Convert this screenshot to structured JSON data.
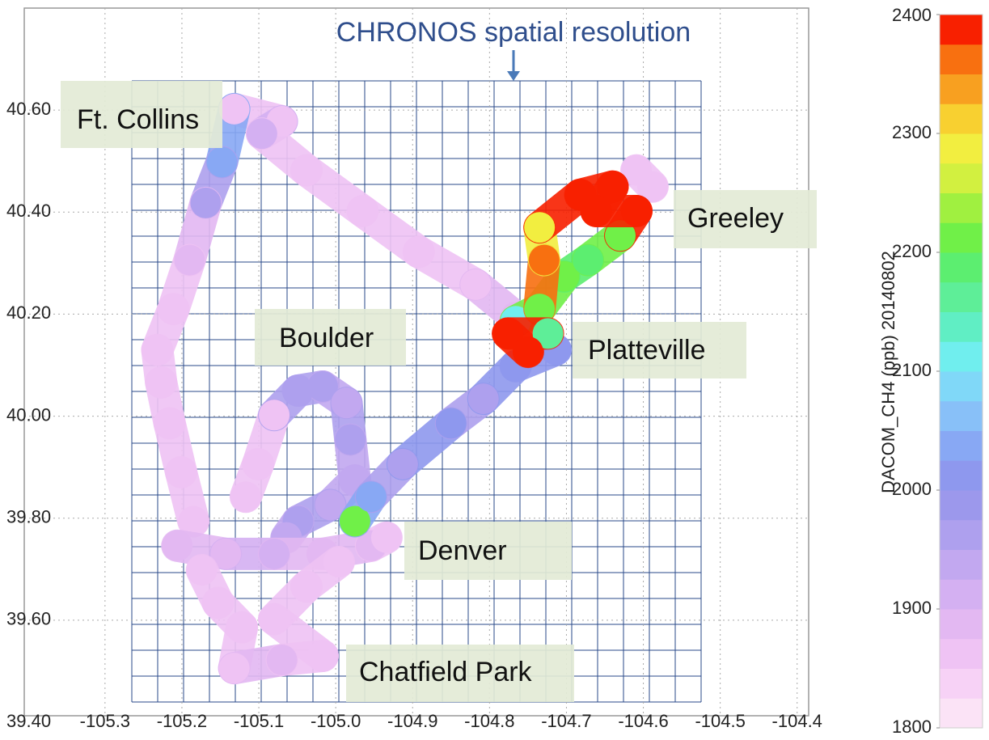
{
  "chart_data": {
    "type": "scatter",
    "annotation": "CHRONOS spatial resolution",
    "places": [
      "Ft. Collins",
      "Greeley",
      "Boulder",
      "Platteville",
      "Denver",
      "Chatfield Park"
    ],
    "colorbar_label": "DACOM_CH4 (ppb) 20140802",
    "xlim": [
      -105.405,
      -104.385
    ],
    "ylim": [
      39.4,
      40.8
    ],
    "xticks": [
      -105.3,
      -105.2,
      -105.1,
      {
        "value": -105.0,
        "label": "-105.0"
      },
      -104.9,
      -104.8,
      -104.7,
      -104.6,
      -104.5,
      -104.4
    ],
    "yticks": [
      {
        "value": 39.4,
        "label": "39.40"
      },
      {
        "value": 39.6,
        "label": "39.60"
      },
      {
        "value": 39.8,
        "label": "39.80"
      },
      {
        "value": 40.0,
        "label": "40.00"
      },
      {
        "value": 40.2,
        "label": "40.20"
      },
      {
        "value": 40.4,
        "label": "40.40"
      },
      {
        "value": 40.6,
        "label": "40.60"
      }
    ],
    "grid": true,
    "clim": [
      1800,
      2400
    ],
    "cticks": [
      1800,
      1900,
      2000,
      2100,
      2200,
      2300,
      2400
    ],
    "colors": [
      "#fbe3f6",
      "#f7d2f6",
      "#efc3f4",
      "#e3b8f2",
      "#d4b0f2",
      "#c2a8f0",
      "#aea0ee",
      "#9c98ec",
      "#8e98ee",
      "#88a8f4",
      "#88c0f8",
      "#80d8f8",
      "#70eeee",
      "#60eec4",
      "#5eee98",
      "#5cee70",
      "#70f048",
      "#a0f040",
      "#d2f040",
      "#f2ee40",
      "#f8d030",
      "#f8a020",
      "#f87010",
      "#f82000"
    ],
    "tracks": [
      {
        "points": [
          [
            -105.132,
            40.602,
            1860
          ],
          [
            -105.07,
            40.578,
            1870
          ],
          [
            -105.096,
            40.554,
            1920
          ],
          [
            -105.038,
            40.482,
            1860
          ],
          [
            -104.965,
            40.402,
            1860
          ],
          [
            -104.892,
            40.322,
            1860
          ],
          [
            -104.818,
            40.258,
            1860
          ],
          [
            -104.766,
            40.194,
            1880
          ]
        ]
      },
      {
        "points": [
          [
            -105.132,
            40.602,
            1860
          ],
          [
            -105.148,
            40.498,
            2030
          ],
          [
            -105.169,
            40.418,
            1960
          ],
          [
            -105.19,
            40.306,
            1880
          ],
          [
            -105.211,
            40.21,
            1870
          ],
          [
            -105.232,
            40.13,
            1860
          ],
          [
            -105.227,
            40.066,
            1860
          ],
          [
            -105.216,
            39.986,
            1860
          ],
          [
            -105.201,
            39.89,
            1860
          ],
          [
            -105.185,
            39.794,
            1870
          ]
        ]
      },
      {
        "points": [
          [
            -105.117,
            39.842,
            1850
          ],
          [
            -105.101,
            39.906,
            1850
          ],
          [
            -105.08,
            40.002,
            1860
          ],
          [
            -105.049,
            40.05,
            1960
          ],
          [
            -105.017,
            40.058,
            1950
          ],
          [
            -104.986,
            40.026,
            1940
          ],
          [
            -104.981,
            39.954,
            1950
          ],
          [
            -104.975,
            39.874,
            1930
          ],
          [
            -105.007,
            39.826,
            1940
          ],
          [
            -105.049,
            39.794,
            1960
          ],
          [
            -105.064,
            39.762,
            1940
          ]
        ]
      },
      {
        "points": [
          [
            -105.206,
            39.746,
            1880
          ],
          [
            -105.143,
            39.73,
            1880
          ],
          [
            -105.08,
            39.73,
            1900
          ],
          [
            -105.017,
            39.73,
            1890
          ],
          [
            -104.954,
            39.746,
            1880
          ],
          [
            -104.934,
            39.762,
            1860
          ]
        ]
      },
      {
        "points": [
          [
            -105.174,
            39.698,
            1860
          ],
          [
            -105.153,
            39.634,
            1850
          ],
          [
            -105.122,
            39.586,
            1860
          ],
          [
            -105.132,
            39.506,
            1850
          ],
          [
            -105.07,
            39.522,
            1880
          ],
          [
            -105.017,
            39.53,
            1870
          ],
          [
            -105.08,
            39.602,
            1860
          ],
          [
            -105.038,
            39.666,
            1850
          ],
          [
            -104.996,
            39.714,
            1850
          ]
        ]
      },
      {
        "points": [
          [
            -104.588,
            40.45,
            1850
          ],
          [
            -104.609,
            40.482,
            1860
          ]
        ]
      },
      {
        "points": [
          [
            -104.975,
            39.794,
            2200
          ],
          [
            -104.954,
            39.842,
            2030
          ],
          [
            -104.913,
            39.906,
            1960
          ],
          [
            -104.85,
            39.986,
            2000
          ],
          [
            -104.808,
            40.034,
            1960
          ],
          [
            -104.766,
            40.098,
            2000
          ],
          [
            -104.714,
            40.13,
            2000
          ]
        ]
      },
      {
        "points": [
          [
            -104.766,
            40.186,
            2100
          ],
          [
            -104.735,
            40.21,
            2200
          ],
          [
            -104.703,
            40.274,
            2200
          ],
          [
            -104.672,
            40.306,
            2190
          ],
          [
            -104.63,
            40.354,
            2200
          ],
          [
            -104.609,
            40.402,
            2400
          ]
        ]
      },
      {
        "points": [
          [
            -104.735,
            40.21,
            2200
          ],
          [
            -104.729,
            40.306,
            2350
          ],
          [
            -104.735,
            40.37,
            2280
          ],
          [
            -104.682,
            40.434,
            2400
          ],
          [
            -104.64,
            40.45,
            2400
          ],
          [
            -104.661,
            40.402,
            2400
          ],
          [
            -104.609,
            40.402,
            2400
          ]
        ]
      },
      {
        "points": [
          [
            -104.724,
            40.162,
            2150
          ],
          [
            -104.776,
            40.162,
            2400
          ],
          [
            -104.75,
            40.126,
            2400
          ]
        ]
      }
    ]
  }
}
